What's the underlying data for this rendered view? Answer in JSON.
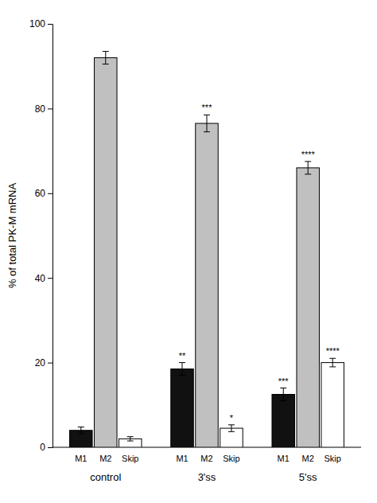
{
  "chart_data": {
    "type": "bar",
    "categories": [
      "control",
      "3'ss",
      "5'ss"
    ],
    "series": [
      {
        "name": "M1",
        "color": "#111111",
        "values": [
          4.0,
          18.5,
          12.5
        ],
        "errors": [
          0.8,
          1.5,
          1.5
        ],
        "significance": [
          null,
          "**",
          "***"
        ]
      },
      {
        "name": "M2",
        "color": "#c0c0c0",
        "values": [
          92.0,
          76.5,
          66.0
        ],
        "errors": [
          1.5,
          2.0,
          1.5
        ],
        "significance": [
          null,
          "***",
          "****"
        ]
      },
      {
        "name": "Skip",
        "color": "#ffffff",
        "values": [
          2.0,
          4.5,
          20.0
        ],
        "errors": [
          0.5,
          0.8,
          1.0
        ],
        "significance": [
          null,
          "*",
          "****"
        ]
      }
    ],
    "y_label": "% of total PK-M mRNA",
    "ylim": [
      0,
      100
    ],
    "yticks": [
      0,
      20,
      40,
      60,
      80,
      100
    ],
    "grid": false
  }
}
